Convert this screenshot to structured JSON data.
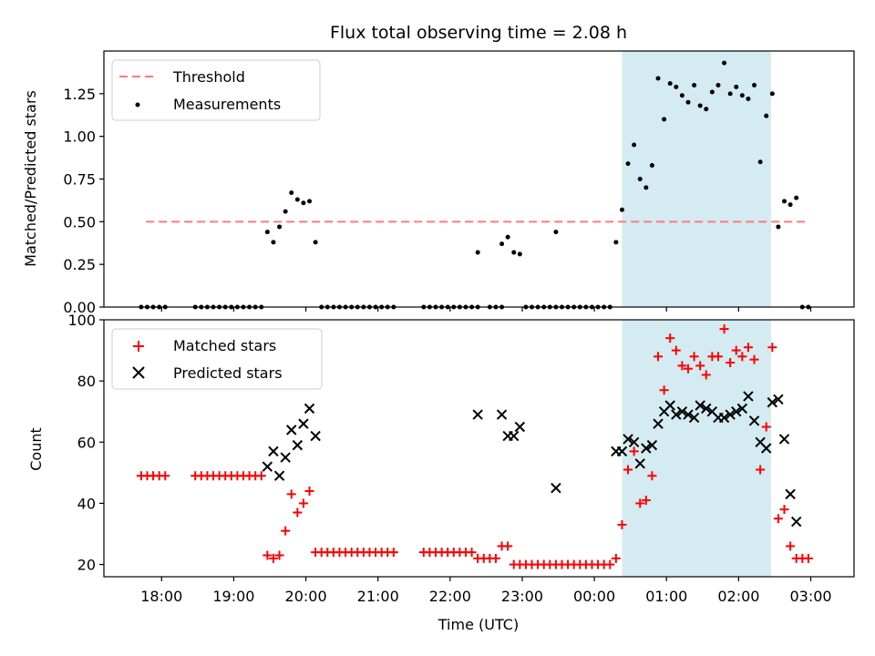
{
  "chart_data": [
    {
      "type": "scatter",
      "title": "Flux total observing time = 2.08 h",
      "xlabel": "",
      "ylabel": "Matched/Predicted stars",
      "ylim": [
        0,
        1.5
      ],
      "yticks": [
        "0.00",
        "0.25",
        "0.50",
        "0.75",
        "1.00",
        "1.25"
      ],
      "yticks_values": [
        0,
        0.25,
        0.5,
        0.75,
        1.0,
        1.25
      ],
      "threshold": {
        "name": "Threshold",
        "value": 0.5,
        "x_start": "17:47",
        "x_end": "02:58",
        "color": "#ff7a7a"
      },
      "shaded_region": {
        "start": "00:23",
        "end": "02:27",
        "color": "#a9d8e4"
      },
      "legend": {
        "placement": "top-left",
        "entries": [
          "Threshold",
          "Measurements"
        ]
      },
      "series": [
        {
          "name": "Measurements",
          "color": "#000000",
          "points": [
            [
              "17:43",
              0
            ],
            [
              "17:48",
              0
            ],
            [
              "17:53",
              0
            ],
            [
              "17:58",
              0
            ],
            [
              "18:03",
              0
            ],
            [
              "18:28",
              0
            ],
            [
              "18:33",
              0
            ],
            [
              "18:38",
              0
            ],
            [
              "18:43",
              0
            ],
            [
              "18:48",
              0
            ],
            [
              "18:53",
              0
            ],
            [
              "18:58",
              0
            ],
            [
              "19:03",
              0
            ],
            [
              "19:08",
              0
            ],
            [
              "19:13",
              0
            ],
            [
              "19:18",
              0
            ],
            [
              "19:23",
              0
            ],
            [
              "19:28",
              0.44
            ],
            [
              "19:33",
              0.38
            ],
            [
              "19:38",
              0.47
            ],
            [
              "19:43",
              0.56
            ],
            [
              "19:48",
              0.67
            ],
            [
              "19:53",
              0.63
            ],
            [
              "19:58",
              0.61
            ],
            [
              "20:03",
              0.62
            ],
            [
              "20:08",
              0.38
            ],
            [
              "20:13",
              0
            ],
            [
              "20:18",
              0
            ],
            [
              "20:23",
              0
            ],
            [
              "20:28",
              0
            ],
            [
              "20:33",
              0
            ],
            [
              "20:38",
              0
            ],
            [
              "20:43",
              0
            ],
            [
              "20:48",
              0
            ],
            [
              "20:53",
              0
            ],
            [
              "20:58",
              0
            ],
            [
              "21:03",
              0
            ],
            [
              "21:08",
              0
            ],
            [
              "21:13",
              0
            ],
            [
              "21:38",
              0
            ],
            [
              "21:43",
              0
            ],
            [
              "21:48",
              0
            ],
            [
              "21:53",
              0
            ],
            [
              "21:58",
              0
            ],
            [
              "22:03",
              0
            ],
            [
              "22:08",
              0
            ],
            [
              "22:13",
              0
            ],
            [
              "22:18",
              0
            ],
            [
              "22:23",
              0
            ],
            [
              "22:23",
              0.32
            ],
            [
              "22:33",
              0
            ],
            [
              "22:38",
              0
            ],
            [
              "22:43",
              0
            ],
            [
              "22:43",
              0.37
            ],
            [
              "22:48",
              0.41
            ],
            [
              "22:53",
              0.32
            ],
            [
              "22:58",
              0.31
            ],
            [
              "23:03",
              0
            ],
            [
              "23:08",
              0
            ],
            [
              "23:13",
              0
            ],
            [
              "23:18",
              0
            ],
            [
              "23:23",
              0
            ],
            [
              "23:28",
              0.44
            ],
            [
              "23:28",
              0
            ],
            [
              "23:33",
              0
            ],
            [
              "23:38",
              0
            ],
            [
              "23:43",
              0
            ],
            [
              "23:48",
              0
            ],
            [
              "23:53",
              0
            ],
            [
              "23:58",
              0
            ],
            [
              "00:03",
              0
            ],
            [
              "00:08",
              0
            ],
            [
              "00:13",
              0
            ],
            [
              "00:18",
              0.38
            ],
            [
              "00:23",
              0.57
            ],
            [
              "00:28",
              0.84
            ],
            [
              "00:33",
              0.95
            ],
            [
              "00:38",
              0.75
            ],
            [
              "00:43",
              0.7
            ],
            [
              "00:48",
              0.83
            ],
            [
              "00:53",
              1.34
            ],
            [
              "00:58",
              1.1
            ],
            [
              "01:03",
              1.31
            ],
            [
              "01:08",
              1.29
            ],
            [
              "01:13",
              1.24
            ],
            [
              "01:18",
              1.2
            ],
            [
              "01:23",
              1.3
            ],
            [
              "01:28",
              1.18
            ],
            [
              "01:33",
              1.16
            ],
            [
              "01:38",
              1.26
            ],
            [
              "01:43",
              1.3
            ],
            [
              "01:48",
              1.43
            ],
            [
              "01:53",
              1.25
            ],
            [
              "01:58",
              1.29
            ],
            [
              "02:03",
              1.24
            ],
            [
              "02:08",
              1.22
            ],
            [
              "02:13",
              1.3
            ],
            [
              "02:18",
              0.85
            ],
            [
              "02:23",
              1.12
            ],
            [
              "02:28",
              1.25
            ],
            [
              "02:33",
              0.47
            ],
            [
              "02:38",
              0.62
            ],
            [
              "02:43",
              0.6
            ],
            [
              "02:48",
              0.64
            ],
            [
              "02:53",
              0
            ],
            [
              "02:58",
              0
            ]
          ]
        }
      ]
    },
    {
      "type": "scatter",
      "xlabel": "Time (UTC)",
      "ylabel": "Count",
      "ylim": [
        16,
        100
      ],
      "yticks": [
        "20",
        "40",
        "60",
        "80",
        "100"
      ],
      "yticks_values": [
        20,
        40,
        60,
        80,
        100
      ],
      "xticks": [
        "18:00",
        "19:00",
        "20:00",
        "21:00",
        "22:00",
        "23:00",
        "00:00",
        "01:00",
        "02:00",
        "03:00"
      ],
      "shaded_region": {
        "start": "00:23",
        "end": "02:27",
        "color": "#a9d8e4"
      },
      "legend": {
        "placement": "top-left",
        "entries": [
          "Matched stars",
          "Predicted stars"
        ]
      },
      "series": [
        {
          "name": "Matched stars",
          "marker": "plus",
          "color": "#ff0000",
          "points": [
            [
              "17:43",
              49
            ],
            [
              "17:48",
              49
            ],
            [
              "17:53",
              49
            ],
            [
              "17:58",
              49
            ],
            [
              "18:03",
              49
            ],
            [
              "18:28",
              49
            ],
            [
              "18:33",
              49
            ],
            [
              "18:38",
              49
            ],
            [
              "18:43",
              49
            ],
            [
              "18:48",
              49
            ],
            [
              "18:53",
              49
            ],
            [
              "18:58",
              49
            ],
            [
              "19:03",
              49
            ],
            [
              "19:08",
              49
            ],
            [
              "19:13",
              49
            ],
            [
              "19:18",
              49
            ],
            [
              "19:23",
              49
            ],
            [
              "19:28",
              23
            ],
            [
              "19:33",
              22
            ],
            [
              "19:38",
              23
            ],
            [
              "19:43",
              31
            ],
            [
              "19:48",
              43
            ],
            [
              "19:53",
              37
            ],
            [
              "19:58",
              40
            ],
            [
              "20:03",
              44
            ],
            [
              "20:08",
              24
            ],
            [
              "20:13",
              24
            ],
            [
              "20:18",
              24
            ],
            [
              "20:23",
              24
            ],
            [
              "20:28",
              24
            ],
            [
              "20:33",
              24
            ],
            [
              "20:38",
              24
            ],
            [
              "20:43",
              24
            ],
            [
              "20:48",
              24
            ],
            [
              "20:53",
              24
            ],
            [
              "20:58",
              24
            ],
            [
              "21:03",
              24
            ],
            [
              "21:08",
              24
            ],
            [
              "21:13",
              24
            ],
            [
              "21:38",
              24
            ],
            [
              "21:43",
              24
            ],
            [
              "21:48",
              24
            ],
            [
              "21:53",
              24
            ],
            [
              "21:58",
              24
            ],
            [
              "22:03",
              24
            ],
            [
              "22:08",
              24
            ],
            [
              "22:13",
              24
            ],
            [
              "22:18",
              24
            ],
            [
              "22:23",
              22
            ],
            [
              "22:28",
              22
            ],
            [
              "22:33",
              22
            ],
            [
              "22:38",
              22
            ],
            [
              "22:43",
              26
            ],
            [
              "22:48",
              26
            ],
            [
              "22:53",
              20
            ],
            [
              "22:58",
              20
            ],
            [
              "23:03",
              20
            ],
            [
              "23:08",
              20
            ],
            [
              "23:13",
              20
            ],
            [
              "23:18",
              20
            ],
            [
              "23:23",
              20
            ],
            [
              "23:28",
              20
            ],
            [
              "23:33",
              20
            ],
            [
              "23:38",
              20
            ],
            [
              "23:43",
              20
            ],
            [
              "23:48",
              20
            ],
            [
              "23:53",
              20
            ],
            [
              "23:58",
              20
            ],
            [
              "00:03",
              20
            ],
            [
              "00:08",
              20
            ],
            [
              "00:13",
              20
            ],
            [
              "00:18",
              22
            ],
            [
              "00:23",
              33
            ],
            [
              "00:28",
              51
            ],
            [
              "00:33",
              57
            ],
            [
              "00:38",
              40
            ],
            [
              "00:43",
              41
            ],
            [
              "00:48",
              49
            ],
            [
              "00:53",
              88
            ],
            [
              "00:58",
              77
            ],
            [
              "01:03",
              94
            ],
            [
              "01:08",
              90
            ],
            [
              "01:13",
              85
            ],
            [
              "01:18",
              84
            ],
            [
              "01:23",
              88
            ],
            [
              "01:28",
              85
            ],
            [
              "01:33",
              82
            ],
            [
              "01:38",
              88
            ],
            [
              "01:43",
              88
            ],
            [
              "01:48",
              97
            ],
            [
              "01:53",
              86
            ],
            [
              "01:58",
              90
            ],
            [
              "02:03",
              88
            ],
            [
              "02:08",
              91
            ],
            [
              "02:13",
              87
            ],
            [
              "02:18",
              51
            ],
            [
              "02:23",
              65
            ],
            [
              "02:28",
              91
            ],
            [
              "02:33",
              35
            ],
            [
              "02:38",
              38
            ],
            [
              "02:43",
              26
            ],
            [
              "02:48",
              22
            ],
            [
              "02:53",
              22
            ],
            [
              "02:58",
              22
            ]
          ]
        },
        {
          "name": "Predicted stars",
          "marker": "x",
          "color": "#000000",
          "points": [
            [
              "19:28",
              52
            ],
            [
              "19:33",
              57
            ],
            [
              "19:38",
              49
            ],
            [
              "19:43",
              55
            ],
            [
              "19:48",
              64
            ],
            [
              "19:53",
              59
            ],
            [
              "19:58",
              66
            ],
            [
              "20:03",
              71
            ],
            [
              "20:08",
              62
            ],
            [
              "22:23",
              69
            ],
            [
              "22:43",
              69
            ],
            [
              "22:48",
              62
            ],
            [
              "22:53",
              62
            ],
            [
              "22:58",
              65
            ],
            [
              "23:28",
              45
            ],
            [
              "00:18",
              57
            ],
            [
              "00:23",
              57
            ],
            [
              "00:28",
              61
            ],
            [
              "00:33",
              60
            ],
            [
              "00:38",
              53
            ],
            [
              "00:43",
              58
            ],
            [
              "00:48",
              59
            ],
            [
              "00:53",
              66
            ],
            [
              "00:58",
              70
            ],
            [
              "01:03",
              72
            ],
            [
              "01:08",
              69
            ],
            [
              "01:13",
              70
            ],
            [
              "01:18",
              69
            ],
            [
              "01:23",
              68
            ],
            [
              "01:28",
              72
            ],
            [
              "01:33",
              71
            ],
            [
              "01:38",
              70
            ],
            [
              "01:43",
              68
            ],
            [
              "01:48",
              68
            ],
            [
              "01:53",
              69
            ],
            [
              "01:58",
              70
            ],
            [
              "02:03",
              71
            ],
            [
              "02:08",
              75
            ],
            [
              "02:13",
              67
            ],
            [
              "02:18",
              60
            ],
            [
              "02:23",
              58
            ],
            [
              "02:28",
              73
            ],
            [
              "02:33",
              74
            ],
            [
              "02:38",
              61
            ],
            [
              "02:43",
              43
            ],
            [
              "02:48",
              34
            ]
          ]
        }
      ]
    }
  ]
}
